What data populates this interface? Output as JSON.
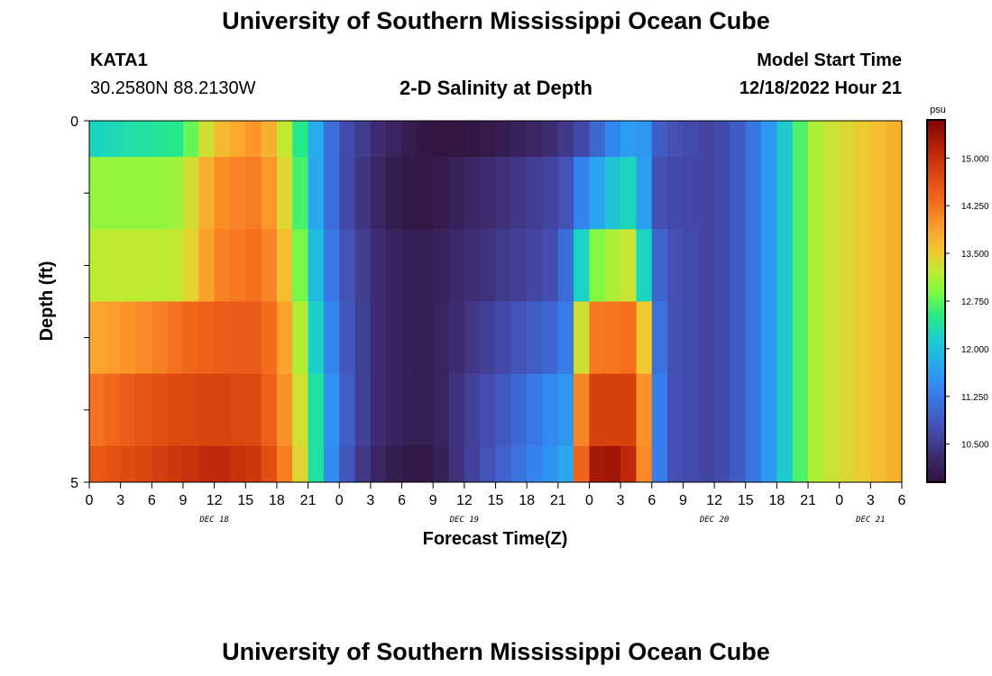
{
  "page": {
    "title_top": "University of Southern Mississippi Ocean Cube",
    "title_bottom": "University of Southern Mississippi Ocean Cube",
    "station": "KATA1",
    "coords": "30.2580N  88.2130W",
    "chart_title": "2-D Salinity at Depth",
    "model_start_label": "Model Start Time",
    "model_start_value": "12/18/2022 Hour 21"
  },
  "colors": {
    "background": "#ffffff",
    "axis": "#000000"
  },
  "chart_data": {
    "type": "heatmap",
    "title": "2-D Salinity at Depth",
    "xlabel": "Forecast Time(Z)",
    "ylabel": "Depth (ft)",
    "x_hours_range": [
      0,
      78
    ],
    "x_step_hours": 1.5,
    "y_range": [
      0,
      5
    ],
    "y_ticks": [
      "0",
      "5"
    ],
    "x_tick_labels": [
      "0",
      "3",
      "6",
      "9",
      "12",
      "15",
      "18",
      "21",
      "0",
      "3",
      "6",
      "9",
      "12",
      "15",
      "18",
      "21",
      "0",
      "3",
      "6",
      "9",
      "12",
      "15",
      "18",
      "21",
      "0",
      "3",
      "6"
    ],
    "day_labels": [
      {
        "text": "DEC 18",
        "hour": 12
      },
      {
        "text": "DEC 19",
        "hour": 36
      },
      {
        "text": "DEC 20",
        "hour": 60
      },
      {
        "text": "DEC 21",
        "hour": 75
      }
    ],
    "colorbar": {
      "unit": "psu",
      "min": 9.9,
      "max": 15.6,
      "ticks": [
        "10.500",
        "11.250",
        "12.000",
        "12.750",
        "13.500",
        "14.250",
        "15.000"
      ],
      "tick_values": [
        10.5,
        11.25,
        12.0,
        12.75,
        13.5,
        14.25,
        15.0
      ]
    },
    "layers": [
      {
        "depth_top": 0,
        "depth_bottom": 0.5,
        "knots": [
          [
            0,
            12.2
          ],
          [
            9,
            12.5
          ],
          [
            12,
            13.6
          ],
          [
            16,
            14.0
          ],
          [
            18,
            13.6
          ],
          [
            20,
            12.6
          ],
          [
            22,
            11.7
          ],
          [
            24,
            10.8
          ],
          [
            27,
            10.4
          ],
          [
            30,
            10.1
          ],
          [
            33,
            9.95
          ],
          [
            36,
            9.95
          ],
          [
            40,
            10.1
          ],
          [
            44,
            10.3
          ],
          [
            47,
            10.6
          ],
          [
            49,
            11.1
          ],
          [
            51,
            11.6
          ],
          [
            53,
            11.7
          ],
          [
            55,
            10.8
          ],
          [
            60,
            10.6
          ],
          [
            63,
            11.0
          ],
          [
            66,
            11.8
          ],
          [
            68,
            12.6
          ],
          [
            70,
            13.2
          ],
          [
            78,
            13.8
          ]
        ]
      },
      {
        "depth_top": 0.5,
        "depth_bottom": 1.5,
        "knots": [
          [
            0,
            13.0
          ],
          [
            8,
            13.0
          ],
          [
            10,
            13.4
          ],
          [
            12,
            14.0
          ],
          [
            16,
            14.2
          ],
          [
            18,
            13.8
          ],
          [
            20,
            12.8
          ],
          [
            22,
            11.6
          ],
          [
            24,
            10.8
          ],
          [
            27,
            10.3
          ],
          [
            30,
            10.0
          ],
          [
            33,
            10.0
          ],
          [
            36,
            10.2
          ],
          [
            40,
            10.4
          ],
          [
            44,
            10.6
          ],
          [
            46,
            10.8
          ],
          [
            47,
            11.3
          ],
          [
            49,
            11.8
          ],
          [
            51,
            12.2
          ],
          [
            53,
            12.3
          ],
          [
            53.5,
            11.0
          ],
          [
            55,
            10.7
          ],
          [
            60,
            10.6
          ],
          [
            63,
            11.0
          ],
          [
            66,
            11.8
          ],
          [
            68,
            12.6
          ],
          [
            70,
            13.2
          ],
          [
            78,
            13.8
          ]
        ]
      },
      {
        "depth_top": 1.5,
        "depth_bottom": 2.5,
        "knots": [
          [
            0,
            13.2
          ],
          [
            8,
            13.2
          ],
          [
            10,
            13.5
          ],
          [
            12,
            14.1
          ],
          [
            16,
            14.3
          ],
          [
            18,
            14.0
          ],
          [
            20,
            13.0
          ],
          [
            22,
            11.8
          ],
          [
            24,
            10.9
          ],
          [
            27,
            10.4
          ],
          [
            30,
            10.1
          ],
          [
            33,
            10.1
          ],
          [
            36,
            10.3
          ],
          [
            40,
            10.5
          ],
          [
            44,
            10.7
          ],
          [
            45.5,
            10.9
          ],
          [
            47,
            12.0
          ],
          [
            48,
            12.8
          ],
          [
            50,
            13.1
          ],
          [
            52,
            13.3
          ],
          [
            53.5,
            12.0
          ],
          [
            55,
            10.8
          ],
          [
            60,
            10.6
          ],
          [
            63,
            11.0
          ],
          [
            66,
            11.8
          ],
          [
            68,
            12.6
          ],
          [
            70,
            13.2
          ],
          [
            78,
            13.8
          ]
        ]
      },
      {
        "depth_top": 2.5,
        "depth_bottom": 3.5,
        "knots": [
          [
            0,
            13.8
          ],
          [
            6,
            14.1
          ],
          [
            10,
            14.4
          ],
          [
            14,
            14.5
          ],
          [
            16,
            14.5
          ],
          [
            18,
            14.2
          ],
          [
            20,
            13.3
          ],
          [
            22,
            12.0
          ],
          [
            24,
            11.0
          ],
          [
            27,
            10.4
          ],
          [
            30,
            10.1
          ],
          [
            33,
            10.1
          ],
          [
            36,
            10.4
          ],
          [
            40,
            10.7
          ],
          [
            44,
            11.0
          ],
          [
            46,
            11.3
          ],
          [
            46.5,
            12.5
          ],
          [
            47.5,
            13.6
          ],
          [
            48.5,
            14.2
          ],
          [
            52,
            14.3
          ],
          [
            53,
            14.0
          ],
          [
            54,
            12.2
          ],
          [
            55,
            10.8
          ],
          [
            60,
            10.6
          ],
          [
            63,
            11.0
          ],
          [
            66,
            11.8
          ],
          [
            68,
            12.6
          ],
          [
            70,
            13.2
          ],
          [
            78,
            13.8
          ]
        ]
      },
      {
        "depth_top": 3.5,
        "depth_bottom": 4.5,
        "knots": [
          [
            0,
            14.2
          ],
          [
            4,
            14.5
          ],
          [
            8,
            14.7
          ],
          [
            12,
            14.8
          ],
          [
            16,
            14.7
          ],
          [
            18,
            14.3
          ],
          [
            20,
            13.5
          ],
          [
            22,
            12.2
          ],
          [
            24,
            11.1
          ],
          [
            27,
            10.4
          ],
          [
            30,
            10.1
          ],
          [
            33,
            10.1
          ],
          [
            36,
            10.5
          ],
          [
            40,
            10.9
          ],
          [
            44,
            11.4
          ],
          [
            46,
            11.6
          ],
          [
            46.5,
            13.5
          ],
          [
            47.5,
            14.3
          ],
          [
            48.5,
            14.8
          ],
          [
            52,
            14.8
          ],
          [
            53,
            14.4
          ],
          [
            54,
            12.8
          ],
          [
            55,
            10.8
          ],
          [
            60,
            10.6
          ],
          [
            63,
            11.0
          ],
          [
            66,
            11.8
          ],
          [
            68,
            12.6
          ],
          [
            70,
            13.2
          ],
          [
            78,
            13.8
          ]
        ]
      },
      {
        "depth_top": 4.5,
        "depth_bottom": 5.0,
        "knots": [
          [
            0,
            14.5
          ],
          [
            4,
            14.7
          ],
          [
            8,
            14.9
          ],
          [
            12,
            15.1
          ],
          [
            16,
            14.9
          ],
          [
            18,
            14.5
          ],
          [
            20,
            13.6
          ],
          [
            22,
            12.2
          ],
          [
            24,
            11.0
          ],
          [
            27,
            10.3
          ],
          [
            30,
            10.0
          ],
          [
            33,
            10.0
          ],
          [
            36,
            10.5
          ],
          [
            40,
            11.0
          ],
          [
            44,
            11.5
          ],
          [
            46,
            11.8
          ],
          [
            46.5,
            13.8
          ],
          [
            48,
            15.0
          ],
          [
            49,
            15.4
          ],
          [
            51,
            15.3
          ],
          [
            52,
            15.0
          ],
          [
            53,
            14.5
          ],
          [
            54,
            12.8
          ],
          [
            55,
            10.8
          ],
          [
            60,
            10.6
          ],
          [
            63,
            11.0
          ],
          [
            66,
            11.8
          ],
          [
            68,
            12.6
          ],
          [
            70,
            13.2
          ],
          [
            78,
            13.8
          ]
        ]
      }
    ]
  }
}
